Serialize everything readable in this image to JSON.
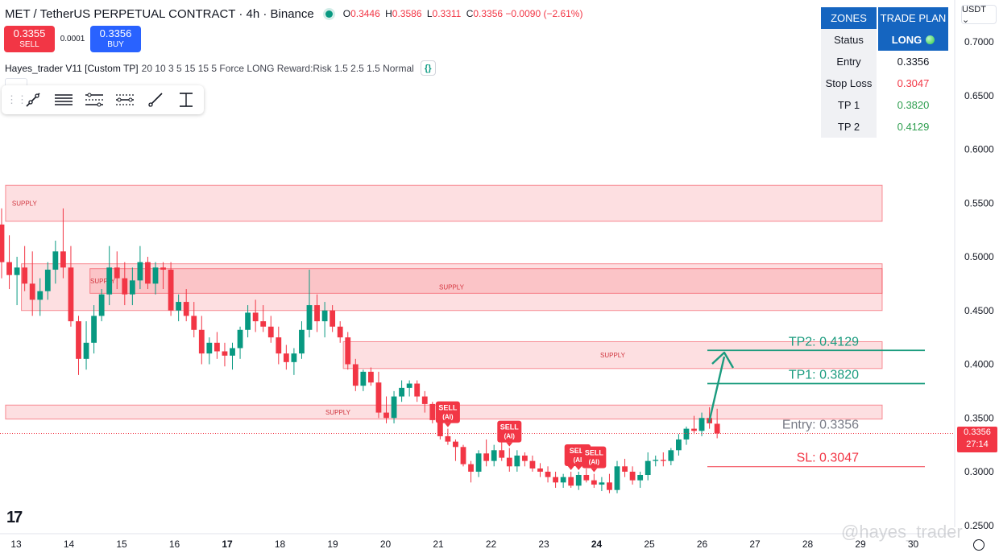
{
  "header": {
    "symbol": "MET / TetherUS PERPETUAL CONTRACT · 4h · Binance",
    "ohlc": {
      "o": "0.3446",
      "h": "0.3586",
      "l": "0.3311",
      "c": "0.3356",
      "change": "−0.0090 (−2.61%)"
    },
    "ohlc_keys": {
      "o": "O",
      "h": "H",
      "l": "L",
      "c": "C"
    }
  },
  "trade": {
    "sell_price": "0.3355",
    "sell_label": "SELL",
    "spread": "0.0001",
    "buy_price": "0.3356",
    "buy_label": "BUY"
  },
  "indicator": {
    "name": "Hayes_trader V11 [Custom TP]",
    "params": "20 10 3 5 15 15 5 Force LONG Reward:Risk 1.5 2.5 1.5 Normal",
    "braces": "{}"
  },
  "toolbar": {
    "tools": [
      "trend-line-tool",
      "horizontal-lines-tool",
      "parallel-channel-tool",
      "regression-tool",
      "ray-tool",
      "price-range-tool"
    ]
  },
  "zones_table": {
    "headers": [
      "ZONES",
      "TRADE PLAN"
    ],
    "rows": [
      {
        "label": "Status",
        "value": "LONG"
      },
      {
        "label": "Entry",
        "value": "0.3356"
      },
      {
        "label": "Stop Loss",
        "value": "0.3047"
      },
      {
        "label": "TP 1",
        "value": "0.3820"
      },
      {
        "label": "TP 2",
        "value": "0.4129"
      }
    ]
  },
  "currency_selector": "USDT ⌄",
  "price_tag": {
    "price": "0.3356",
    "countdown": "27:14"
  },
  "logo": "17",
  "watermark": "@hayes_trader",
  "colors": {
    "up": "#089981",
    "down": "#f23645",
    "zone": "#f23645",
    "tp": "#1a9b7e",
    "blue": "#1565c0"
  },
  "chart_data": {
    "type": "candlestick",
    "y_axis": {
      "min": 0.25,
      "max": 0.7,
      "ticks": [
        0.25,
        0.3,
        0.35,
        0.4,
        0.45,
        0.5,
        0.55,
        0.6,
        0.65,
        0.7
      ],
      "tick_labels": [
        "0.2500",
        "0.3000",
        "0.3500",
        "0.4000",
        "0.4500",
        "0.5000",
        "0.5500",
        "0.6000",
        "0.6500",
        "0.7000"
      ]
    },
    "x_axis": {
      "labels": [
        {
          "day": 13,
          "text": "13"
        },
        {
          "day": 14,
          "text": "14"
        },
        {
          "day": 15,
          "text": "15"
        },
        {
          "day": 16,
          "text": "16"
        },
        {
          "day": 17,
          "text": "17",
          "bold": true
        },
        {
          "day": 18,
          "text": "18"
        },
        {
          "day": 19,
          "text": "19"
        },
        {
          "day": 20,
          "text": "20"
        },
        {
          "day": 21,
          "text": "21"
        },
        {
          "day": 22,
          "text": "22"
        },
        {
          "day": 23,
          "text": "23"
        },
        {
          "day": 24,
          "text": "24",
          "bold": true
        },
        {
          "day": 25,
          "text": "25"
        },
        {
          "day": 26,
          "text": "26"
        },
        {
          "day": 27,
          "text": "27"
        },
        {
          "day": 28,
          "text": "28"
        },
        {
          "day": 29,
          "text": "29"
        },
        {
          "day": 30,
          "text": "30"
        }
      ]
    },
    "candles": [
      [
        0.53,
        0.545,
        0.48,
        0.495
      ],
      [
        0.495,
        0.52,
        0.47,
        0.483
      ],
      [
        0.483,
        0.5,
        0.455,
        0.49
      ],
      [
        0.49,
        0.51,
        0.468,
        0.475
      ],
      [
        0.475,
        0.505,
        0.445,
        0.46
      ],
      [
        0.46,
        0.48,
        0.445,
        0.468
      ],
      [
        0.468,
        0.495,
        0.46,
        0.488
      ],
      [
        0.488,
        0.515,
        0.475,
        0.505
      ],
      [
        0.505,
        0.545,
        0.48,
        0.49
      ],
      [
        0.49,
        0.51,
        0.435,
        0.44
      ],
      [
        0.44,
        0.445,
        0.39,
        0.405
      ],
      [
        0.405,
        0.44,
        0.395,
        0.42
      ],
      [
        0.42,
        0.455,
        0.41,
        0.445
      ],
      [
        0.445,
        0.47,
        0.44,
        0.465
      ],
      [
        0.465,
        0.51,
        0.455,
        0.49
      ],
      [
        0.49,
        0.505,
        0.47,
        0.48
      ],
      [
        0.48,
        0.495,
        0.455,
        0.465
      ],
      [
        0.465,
        0.49,
        0.455,
        0.478
      ],
      [
        0.478,
        0.51,
        0.47,
        0.495
      ],
      [
        0.495,
        0.5,
        0.47,
        0.475
      ],
      [
        0.475,
        0.495,
        0.465,
        0.49
      ],
      [
        0.49,
        0.495,
        0.47,
        0.488
      ],
      [
        0.488,
        0.495,
        0.445,
        0.45
      ],
      [
        0.45,
        0.465,
        0.44,
        0.458
      ],
      [
        0.458,
        0.47,
        0.44,
        0.445
      ],
      [
        0.445,
        0.458,
        0.425,
        0.432
      ],
      [
        0.432,
        0.445,
        0.4,
        0.41
      ],
      [
        0.41,
        0.425,
        0.4,
        0.42
      ],
      [
        0.42,
        0.43,
        0.405,
        0.412
      ],
      [
        0.412,
        0.42,
        0.398,
        0.408
      ],
      [
        0.408,
        0.42,
        0.395,
        0.415
      ],
      [
        0.415,
        0.435,
        0.405,
        0.432
      ],
      [
        0.432,
        0.455,
        0.425,
        0.448
      ],
      [
        0.448,
        0.46,
        0.43,
        0.44
      ],
      [
        0.44,
        0.455,
        0.43,
        0.435
      ],
      [
        0.435,
        0.445,
        0.42,
        0.425
      ],
      [
        0.425,
        0.435,
        0.4,
        0.41
      ],
      [
        0.41,
        0.418,
        0.395,
        0.402
      ],
      [
        0.402,
        0.415,
        0.39,
        0.41
      ],
      [
        0.41,
        0.44,
        0.405,
        0.432
      ],
      [
        0.432,
        0.488,
        0.425,
        0.455
      ],
      [
        0.455,
        0.465,
        0.43,
        0.44
      ],
      [
        0.44,
        0.458,
        0.425,
        0.45
      ],
      [
        0.45,
        0.455,
        0.43,
        0.435
      ],
      [
        0.435,
        0.44,
        0.42,
        0.425
      ],
      [
        0.425,
        0.43,
        0.395,
        0.4
      ],
      [
        0.4,
        0.405,
        0.375,
        0.38
      ],
      [
        0.38,
        0.395,
        0.375,
        0.393
      ],
      [
        0.393,
        0.397,
        0.38,
        0.383
      ],
      [
        0.383,
        0.393,
        0.35,
        0.355
      ],
      [
        0.355,
        0.37,
        0.345,
        0.35
      ],
      [
        0.35,
        0.375,
        0.345,
        0.37
      ],
      [
        0.37,
        0.385,
        0.365,
        0.378
      ],
      [
        0.378,
        0.385,
        0.37,
        0.382
      ],
      [
        0.382,
        0.385,
        0.365,
        0.37
      ],
      [
        0.37,
        0.375,
        0.355,
        0.363
      ],
      [
        0.363,
        0.365,
        0.345,
        0.348
      ],
      [
        0.348,
        0.35,
        0.33,
        0.333
      ],
      [
        0.333,
        0.34,
        0.325,
        0.328
      ],
      [
        0.328,
        0.33,
        0.31,
        0.323
      ],
      [
        0.323,
        0.325,
        0.305,
        0.307
      ],
      [
        0.307,
        0.31,
        0.29,
        0.3
      ],
      [
        0.3,
        0.32,
        0.295,
        0.317
      ],
      [
        0.317,
        0.33,
        0.305,
        0.31
      ],
      [
        0.31,
        0.325,
        0.305,
        0.32
      ],
      [
        0.32,
        0.33,
        0.31,
        0.313
      ],
      [
        0.313,
        0.322,
        0.3,
        0.305
      ],
      [
        0.305,
        0.32,
        0.3,
        0.315
      ],
      [
        0.315,
        0.318,
        0.305,
        0.31
      ],
      [
        0.31,
        0.315,
        0.3,
        0.303
      ],
      [
        0.303,
        0.308,
        0.295,
        0.3
      ],
      [
        0.3,
        0.305,
        0.29,
        0.295
      ],
      [
        0.295,
        0.3,
        0.285,
        0.29
      ],
      [
        0.29,
        0.298,
        0.285,
        0.295
      ],
      [
        0.295,
        0.3,
        0.285,
        0.287
      ],
      [
        0.287,
        0.3,
        0.283,
        0.297
      ],
      [
        0.297,
        0.303,
        0.29,
        0.292
      ],
      [
        0.292,
        0.298,
        0.285,
        0.288
      ],
      [
        0.288,
        0.295,
        0.282,
        0.29
      ],
      [
        0.29,
        0.298,
        0.28,
        0.283
      ],
      [
        0.283,
        0.31,
        0.28,
        0.305
      ],
      [
        0.305,
        0.312,
        0.295,
        0.3
      ],
      [
        0.3,
        0.305,
        0.288,
        0.292
      ],
      [
        0.292,
        0.3,
        0.285,
        0.297
      ],
      [
        0.297,
        0.318,
        0.292,
        0.31
      ],
      [
        0.31,
        0.315,
        0.305,
        0.311
      ],
      [
        0.311,
        0.318,
        0.305,
        0.31
      ],
      [
        0.31,
        0.322,
        0.306,
        0.32
      ],
      [
        0.32,
        0.335,
        0.315,
        0.33
      ],
      [
        0.33,
        0.342,
        0.325,
        0.34
      ],
      [
        0.34,
        0.352,
        0.335,
        0.338
      ],
      [
        0.338,
        0.355,
        0.333,
        0.35
      ],
      [
        0.35,
        0.36,
        0.34,
        0.345
      ],
      [
        0.3446,
        0.3586,
        0.3311,
        0.3356
      ]
    ],
    "zones": [
      {
        "label": "SUPPLY",
        "top": 0.5665,
        "bottom": 0.533,
        "x_from": 12.8
      },
      {
        "label": "SUPPLY",
        "top": 0.4935,
        "bottom": 0.45,
        "x_from": 13.1
      },
      {
        "label": "SUPPLY",
        "top": 0.489,
        "bottom": 0.466,
        "x_from": 14.4
      },
      {
        "label": "SUPPLY",
        "top": 0.421,
        "bottom": 0.396,
        "x_from": 19.2
      },
      {
        "label": "SUPPLY",
        "top": 0.362,
        "bottom": 0.349,
        "x_from": 12.8
      }
    ],
    "levels": [
      {
        "label": "TP2: 0.4129",
        "value": 0.4129,
        "kind": "tp"
      },
      {
        "label": "TP1: 0.3820",
        "value": 0.382,
        "kind": "tp"
      },
      {
        "label": "Entry: 0.3356",
        "value": 0.3356,
        "kind": "entry"
      },
      {
        "label": "SL: 0.3047",
        "value": 0.3047,
        "kind": "sl"
      }
    ],
    "signals": [
      {
        "text": [
          "SELL",
          "(AI)"
        ],
        "candle": 58
      },
      {
        "text": [
          "SELL",
          "(AI)"
        ],
        "candle": 66
      },
      {
        "text": [
          "S",
          "("
        ],
        "candle": 74
      },
      {
        "text": [
          "SELL",
          "(AI)"
        ],
        "candle": 75
      },
      {
        "text": [
          "SELL",
          "(AI)"
        ],
        "candle": 77
      }
    ],
    "current_price": 0.3356
  }
}
